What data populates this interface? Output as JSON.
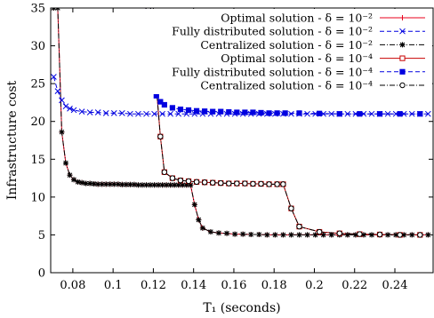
{
  "chart_data": {
    "type": "line",
    "xlabel": "T_1 (seconds)",
    "ylabel": "Infrastructure cost",
    "xlim": [
      0.069,
      0.259
    ],
    "ylim": [
      0,
      35
    ],
    "xticks": [
      0.08,
      0.1,
      0.12,
      0.14,
      0.16,
      0.18,
      0.2,
      0.22,
      0.24
    ],
    "xtick_labels": [
      "0.08",
      "0.1",
      "0.12",
      "0.14",
      "0.16",
      "0.18",
      "0.2",
      "0.22",
      "0.24"
    ],
    "yticks": [
      0,
      5,
      10,
      15,
      20,
      25,
      30,
      35
    ],
    "ytick_labels": [
      "0",
      "5",
      "10",
      "15",
      "20",
      "25",
      "30",
      "35"
    ],
    "grid": false,
    "legend_position": "top-right",
    "series": [
      {
        "name": "Optimal solution - δ = 10⁻²",
        "color": "#e8001c",
        "dash": "solid",
        "marker": "plus",
        "x": [
          0.0705,
          0.0725,
          0.0745,
          0.0765,
          0.0785,
          0.0805,
          0.0825,
          0.0845,
          0.0865,
          0.0885,
          0.0905,
          0.0925,
          0.0945,
          0.0965,
          0.0985,
          0.1005,
          0.1025,
          0.1045,
          0.1065,
          0.1085,
          0.1105,
          0.1125,
          0.1145,
          0.1165,
          0.1185,
          0.1205,
          0.1225,
          0.1245,
          0.1265,
          0.1285,
          0.1305,
          0.1325,
          0.1345,
          0.1365,
          0.1385,
          0.1405,
          0.1425,
          0.1445,
          0.1485,
          0.1525,
          0.1565,
          0.1605,
          0.1645,
          0.1685,
          0.1725,
          0.1765,
          0.1805,
          0.1845,
          0.1885,
          0.1925,
          0.1965,
          0.2005,
          0.2045,
          0.2085,
          0.2125,
          0.2165,
          0.2205,
          0.2245,
          0.2285,
          0.2325,
          0.2365,
          0.2405,
          0.2445,
          0.2485,
          0.2525,
          0.2565
        ],
        "y": [
          35,
          35,
          18.6,
          14.5,
          12.9,
          12.3,
          12.0,
          11.9,
          11.8,
          11.8,
          11.75,
          11.7,
          11.7,
          11.7,
          11.7,
          11.7,
          11.7,
          11.65,
          11.65,
          11.65,
          11.65,
          11.6,
          11.6,
          11.6,
          11.6,
          11.6,
          11.6,
          11.6,
          11.6,
          11.6,
          11.6,
          11.6,
          11.6,
          11.6,
          11.6,
          9.0,
          7.0,
          5.9,
          5.4,
          5.25,
          5.2,
          5.1,
          5.1,
          5.05,
          5.05,
          5.0,
          5.0,
          5.0,
          5.0,
          5.0,
          5.0,
          5.0,
          5.0,
          5.0,
          5.0,
          5.0,
          5.0,
          5.0,
          5.0,
          5.0,
          5.0,
          5.0,
          5.0,
          5.0,
          5.0,
          5.0
        ]
      },
      {
        "name": "Fully distributed solution - δ = 10⁻²",
        "color": "#0000e0",
        "dash": "dashed",
        "marker": "x",
        "x": [
          0.0705,
          0.0725,
          0.0745,
          0.0765,
          0.0785,
          0.0805,
          0.0845,
          0.0885,
          0.0925,
          0.0965,
          0.1005,
          0.1045,
          0.1085,
          0.1125,
          0.1165,
          0.1205,
          0.1245,
          0.1285,
          0.1325,
          0.1365,
          0.1405,
          0.1445,
          0.1485,
          0.1525,
          0.1565,
          0.1605,
          0.1645,
          0.1685,
          0.1725,
          0.1765,
          0.1805,
          0.1845,
          0.1885,
          0.1925,
          0.1965,
          0.2005,
          0.2045,
          0.2085,
          0.2125,
          0.2165,
          0.2205,
          0.2245,
          0.2285,
          0.2325,
          0.2365,
          0.2405,
          0.2445,
          0.2485,
          0.2525,
          0.2565
        ],
        "y": [
          25.9,
          24.0,
          22.8,
          22.0,
          21.7,
          21.5,
          21.3,
          21.2,
          21.2,
          21.1,
          21.1,
          21.1,
          21.0,
          21.0,
          21.0,
          21.0,
          21.0,
          21.0,
          21.0,
          21.0,
          21.0,
          21.0,
          21.0,
          21.0,
          21.0,
          21.0,
          21.0,
          21.0,
          21.0,
          21.0,
          21.0,
          21.0,
          21.0,
          21.0,
          21.0,
          21.0,
          21.0,
          21.0,
          21.0,
          21.0,
          21.0,
          21.0,
          21.0,
          21.0,
          21.0,
          21.0,
          21.0,
          21.0,
          21.0,
          21.0
        ]
      },
      {
        "name": "Centralized solution - δ = 10⁻²",
        "color": "#000000",
        "dash": "dashdot",
        "marker": "star",
        "x": [
          0.0705,
          0.0725,
          0.0745,
          0.0765,
          0.0785,
          0.0805,
          0.0825,
          0.0845,
          0.0865,
          0.0885,
          0.0905,
          0.0925,
          0.0945,
          0.0965,
          0.0985,
          0.1005,
          0.1025,
          0.1045,
          0.1065,
          0.1085,
          0.1105,
          0.1125,
          0.1145,
          0.1165,
          0.1185,
          0.1205,
          0.1225,
          0.1245,
          0.1265,
          0.1285,
          0.1305,
          0.1325,
          0.1345,
          0.1365,
          0.1385,
          0.1405,
          0.1425,
          0.1445,
          0.1485,
          0.1525,
          0.1565,
          0.1605,
          0.1645,
          0.1685,
          0.1725,
          0.1765,
          0.1805,
          0.1845,
          0.1885,
          0.1925,
          0.1965,
          0.2005,
          0.2045,
          0.2085,
          0.2125,
          0.2165,
          0.2205,
          0.2245,
          0.2285,
          0.2325,
          0.2365,
          0.2405,
          0.2445,
          0.2485,
          0.2525,
          0.2565
        ],
        "y": [
          35,
          35,
          18.6,
          14.5,
          12.9,
          12.3,
          12.0,
          11.9,
          11.8,
          11.8,
          11.75,
          11.7,
          11.7,
          11.7,
          11.7,
          11.7,
          11.7,
          11.65,
          11.65,
          11.65,
          11.65,
          11.6,
          11.6,
          11.6,
          11.6,
          11.6,
          11.6,
          11.6,
          11.6,
          11.6,
          11.6,
          11.6,
          11.6,
          11.6,
          11.6,
          9.0,
          7.0,
          5.9,
          5.4,
          5.25,
          5.2,
          5.1,
          5.1,
          5.05,
          5.05,
          5.0,
          5.0,
          5.0,
          5.0,
          5.0,
          5.0,
          5.0,
          5.0,
          5.0,
          5.0,
          5.0,
          5.0,
          5.0,
          5.0,
          5.0,
          5.0,
          5.0,
          5.0,
          5.0,
          5.0,
          5.0
        ]
      },
      {
        "name": "Optimal solution - δ = 10⁻⁴",
        "color": "#c80000",
        "dash": "solid",
        "marker": "square-open",
        "x": [
          0.1175,
          0.1195,
          0.1215,
          0.1235,
          0.1255,
          0.1295,
          0.1335,
          0.1375,
          0.1415,
          0.1455,
          0.1495,
          0.1535,
          0.1575,
          0.1615,
          0.1655,
          0.1695,
          0.1735,
          0.1775,
          0.1815,
          0.1845,
          0.1885,
          0.1925,
          0.2025,
          0.2125,
          0.2225,
          0.2325,
          0.2425,
          0.2525
        ],
        "y": [
          35,
          30.0,
          24.5,
          18.0,
          13.3,
          12.5,
          12.2,
          12.1,
          12.0,
          11.95,
          11.9,
          11.85,
          11.8,
          11.8,
          11.8,
          11.75,
          11.75,
          11.7,
          11.7,
          11.7,
          8.5,
          6.1,
          5.4,
          5.2,
          5.1,
          5.05,
          5.0,
          5.0
        ]
      },
      {
        "name": "Fully distributed solution - δ = 10⁻⁴",
        "color": "#0000e0",
        "dash": "dashed",
        "marker": "square-filled",
        "x": [
          0.1175,
          0.1195,
          0.1215,
          0.1235,
          0.1255,
          0.1295,
          0.1335,
          0.1375,
          0.1415,
          0.1455,
          0.1495,
          0.1535,
          0.1575,
          0.1615,
          0.1655,
          0.1695,
          0.1735,
          0.1775,
          0.1815,
          0.1855,
          0.1925,
          0.2025,
          0.2125,
          0.2225,
          0.2325,
          0.2425,
          0.2525
        ],
        "y": [
          35,
          24.5,
          23.4,
          22.6,
          22.2,
          21.8,
          21.6,
          21.5,
          21.4,
          21.35,
          21.3,
          21.3,
          21.25,
          21.2,
          21.2,
          21.2,
          21.15,
          21.1,
          21.1,
          21.1,
          21.1,
          21.05,
          21.0,
          21.0,
          21.0,
          21.0,
          21.0
        ]
      },
      {
        "name": "Centralized solution - δ = 10⁻⁴",
        "color": "#000000",
        "dash": "dashdot",
        "marker": "circle-open",
        "x": [
          0.1175,
          0.1195,
          0.1215,
          0.1235,
          0.1255,
          0.1295,
          0.1335,
          0.1375,
          0.1415,
          0.1455,
          0.1495,
          0.1535,
          0.1575,
          0.1615,
          0.1655,
          0.1695,
          0.1735,
          0.1775,
          0.1815,
          0.1845,
          0.1885,
          0.1925,
          0.2025,
          0.2125,
          0.2225,
          0.2325,
          0.2425,
          0.2525
        ],
        "y": [
          35,
          29.7,
          24.5,
          18.0,
          13.3,
          12.5,
          12.2,
          12.1,
          12.0,
          11.95,
          11.9,
          11.85,
          11.8,
          11.8,
          11.8,
          11.75,
          11.75,
          11.7,
          11.7,
          11.7,
          8.5,
          6.1,
          5.4,
          5.2,
          5.1,
          5.05,
          5.0,
          5.0
        ]
      }
    ]
  }
}
